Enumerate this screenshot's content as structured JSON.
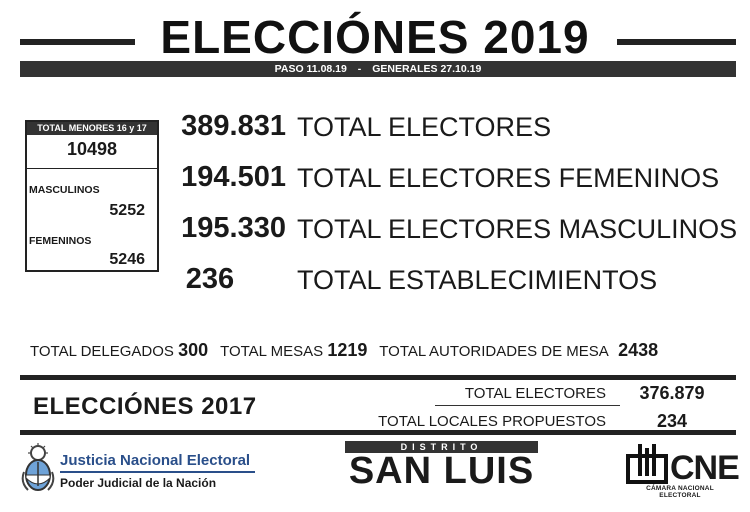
{
  "header": {
    "title": "ELECCIÓNES 2019",
    "paso": "PASO 11.08.19",
    "separator": "-",
    "generales": "GENERALES 27.10.19"
  },
  "minors": {
    "header": "TOTAL MENORES 16 y 17",
    "total": "10498",
    "male_label": "MASCULINOS",
    "male_value": "5252",
    "female_label": "FEMENINOS",
    "female_value": "5246"
  },
  "stats": [
    {
      "value": "389.831",
      "label": "TOTAL ELECTORES"
    },
    {
      "value": "194.501",
      "label": "TOTAL ELECTORES FEMENINOS"
    },
    {
      "value": "195.330",
      "label": "TOTAL ELECTORES MASCULINOS"
    },
    {
      "value": "236",
      "label": "TOTAL ESTABLECIMIENTOS"
    }
  ],
  "totals": {
    "delegados_label": "TOTAL DELEGADOS",
    "delegados_value": "300",
    "mesas_label": "TOTAL MESAS",
    "mesas_value": "1219",
    "autoridades_label": "TOTAL AUTORIDADES DE MESA",
    "autoridades_value": "2438"
  },
  "elections_2017": {
    "title": "ELECCIÓNES 2017",
    "electores_label": "TOTAL ELECTORES",
    "electores_value": "376.879",
    "locales_label": "TOTAL LOCALES PROPUESTOS",
    "locales_value": "234"
  },
  "footer": {
    "jne_title": "Justicia Nacional Electoral",
    "jne_subtitle": "Poder Judicial de la Nación",
    "district_label": "DISTRITO",
    "district_name": "SAN LUIS",
    "cne_name": "CNE",
    "cne_subtitle": "CÁMARA NACIONAL ELECTORAL"
  },
  "colors": {
    "dark": "#222222",
    "jne_blue": "#2a4f8a",
    "shield_blue": "#6fa3d8"
  },
  "icons": {
    "jne_logo": "argentine-coat-of-arms",
    "cne_logo": "cne-building-icon"
  }
}
